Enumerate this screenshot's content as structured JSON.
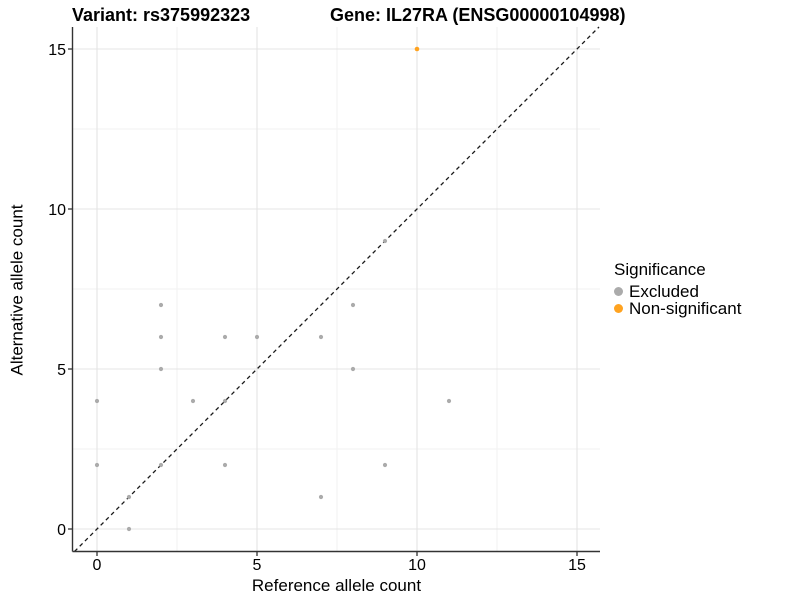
{
  "header": {
    "variant_title": "Variant: rs375992323",
    "gene_title": "Gene: IL27RA (ENSG00000104998)"
  },
  "axes": {
    "x_label": "Reference allele count",
    "y_label": "Alternative allele count",
    "x_tick_labels": [
      "0",
      "5",
      "10",
      "15"
    ],
    "y_tick_labels": [
      "0",
      "5",
      "10",
      "15"
    ],
    "x_tick_values": [
      0,
      5,
      10,
      15
    ],
    "y_tick_values": [
      0,
      5,
      10,
      15
    ],
    "x_minor_values": [
      2.5,
      7.5,
      12.5
    ],
    "y_minor_values": [
      2.5,
      7.5,
      12.5
    ]
  },
  "legend": {
    "title": "Significance",
    "items": [
      {
        "label": "Excluded",
        "color": "#ABABAB"
      },
      {
        "label": "Non-significant",
        "color": "#FFA320"
      }
    ]
  },
  "colors": {
    "excluded_point": "#ABABAB",
    "non_significant_point": "#FFA320",
    "major_gridline": "#E4E4E4",
    "minor_gridline": "#F1F1F1",
    "axis_line": "#333333",
    "identity_line": "#1A1A1A",
    "text": "#000000"
  },
  "chart_data": {
    "type": "scatter",
    "title": "Variant: rs375992323   Gene: IL27RA (ENSG00000104998)",
    "xlabel": "Reference allele count",
    "ylabel": "Alternative allele count",
    "xlim": [
      -0.75,
      15.7
    ],
    "ylim": [
      -0.7,
      15.7
    ],
    "grid": "on",
    "legend_position": "right",
    "legend_title": "Significance",
    "reference_line": "dashed identity line y = x from lower-left to upper-right",
    "series": [
      {
        "name": "Excluded",
        "color": "#ABABAB",
        "marker_radius": 2.1,
        "points": [
          [
            0,
            2
          ],
          [
            0,
            4
          ],
          [
            1,
            0
          ],
          [
            1,
            1
          ],
          [
            2,
            2
          ],
          [
            2,
            5
          ],
          [
            2,
            6
          ],
          [
            2,
            7
          ],
          [
            3,
            4
          ],
          [
            4,
            2
          ],
          [
            4,
            4
          ],
          [
            4,
            6
          ],
          [
            5,
            6
          ],
          [
            7,
            1
          ],
          [
            7,
            6
          ],
          [
            8,
            5
          ],
          [
            8,
            7
          ],
          [
            9,
            2
          ],
          [
            9,
            9
          ],
          [
            11,
            4
          ]
        ]
      },
      {
        "name": "Non-significant",
        "color": "#FFA320",
        "marker_radius": 2.3,
        "points": [
          [
            10,
            15
          ]
        ]
      }
    ]
  }
}
